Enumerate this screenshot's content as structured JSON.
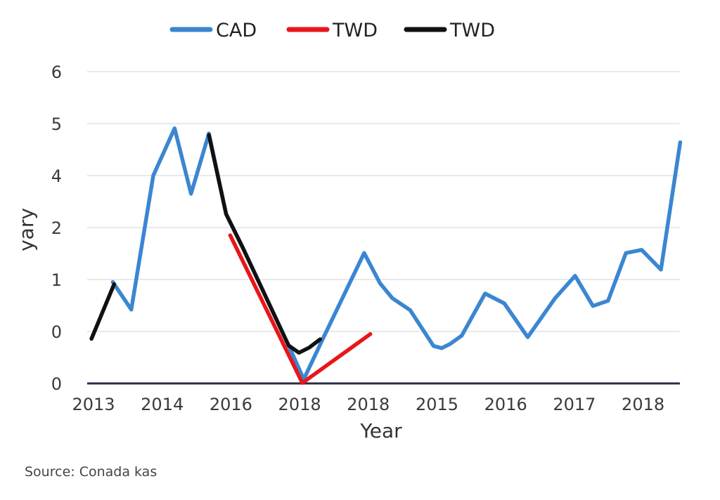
{
  "chart_data": {
    "type": "line",
    "title": "",
    "xlabel": "Year",
    "ylabel": "yary",
    "source": "Source: Conada kas",
    "x_tick_labels": [
      "2013",
      "2014",
      "2016",
      "2018",
      "2018",
      "2015",
      "2016",
      "2017",
      "2018"
    ],
    "y_tick_labels": [
      "0",
      "0",
      "1",
      "2",
      "4",
      "5",
      "6"
    ],
    "ylim": [
      0,
      6
    ],
    "xlim": [
      0,
      8.6
    ],
    "grid": true,
    "legend_position": "top-center",
    "series": [
      {
        "name": "CAD",
        "color": "#3b86d1",
        "x": [
          0.28,
          0.55,
          0.87,
          1.18,
          1.42,
          1.68,
          1.93,
          2.17,
          2.84,
          3.06,
          3.35,
          3.94,
          4.17,
          4.35,
          4.61,
          4.95,
          5.07,
          5.19,
          5.36,
          5.7,
          5.98,
          6.32,
          6.72,
          7.01,
          7.27,
          7.49,
          7.75,
          7.98,
          8.26,
          8.54
        ],
        "y": [
          1.95,
          1.42,
          4.0,
          4.91,
          3.65,
          4.81,
          3.26,
          2.62,
          0.73,
          0.08,
          0.89,
          2.51,
          1.93,
          1.64,
          1.41,
          0.72,
          0.68,
          0.76,
          0.92,
          1.73,
          1.54,
          0.89,
          1.64,
          2.07,
          1.49,
          1.59,
          2.51,
          2.57,
          2.19,
          4.64
        ]
      },
      {
        "name": "TWD",
        "color": "#e8161b",
        "x": [
          1.99,
          3.04,
          4.03
        ],
        "y": [
          2.85,
          0.01,
          0.95
        ]
      },
      {
        "name": "TWD",
        "color": "#111111",
        "x": [
          -0.03,
          0.3,
          null,
          1.68,
          1.93,
          2.17,
          2.84,
          2.99,
          3.14,
          3.3
        ],
        "y": [
          0.86,
          1.91,
          null,
          4.78,
          3.26,
          2.62,
          0.73,
          0.59,
          0.69,
          0.85
        ]
      }
    ]
  }
}
